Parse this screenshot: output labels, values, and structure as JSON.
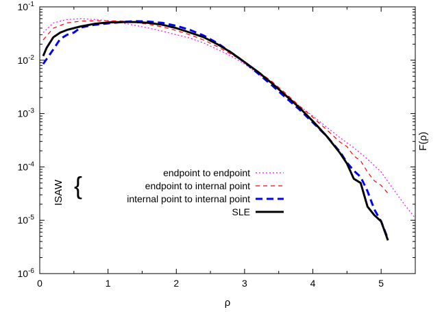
{
  "chart_data": {
    "type": "line",
    "xlabel": "ρ",
    "ylabel": "F(ρ)",
    "xlim": [
      0,
      5.5
    ],
    "ylim_log10": [
      -6,
      -1
    ],
    "yscale": "log",
    "grid": false,
    "legend_position": "center-left",
    "legend_group_label": "ISAW",
    "x_ticks": [
      "0",
      "1",
      "2",
      "3",
      "4",
      "5"
    ],
    "y_ticks": [
      {
        "base": "10",
        "exp": "-1",
        "log": -1
      },
      {
        "base": "10",
        "exp": "-2",
        "log": -2
      },
      {
        "base": "10",
        "exp": "-3",
        "log": -3
      },
      {
        "base": "10",
        "exp": "-4",
        "log": -4
      },
      {
        "base": "10",
        "exp": "-5",
        "log": -5
      },
      {
        "base": "10",
        "exp": "-6",
        "log": -6
      }
    ],
    "series": [
      {
        "name": "endpoint to endpoint",
        "color": "#ff00ff",
        "style": "dotted",
        "width": 1.2,
        "x": [
          0.05,
          0.2,
          0.4,
          0.6,
          0.8,
          1.0,
          1.2,
          1.4,
          1.6,
          1.8,
          2.0,
          2.2,
          2.4,
          2.6,
          2.8,
          3.0,
          3.2,
          3.4,
          3.6,
          3.8,
          4.0,
          4.2,
          4.4,
          4.6,
          4.8,
          5.0,
          5.2,
          5.35,
          5.5
        ],
        "y": [
          0.033,
          0.05,
          0.058,
          0.06,
          0.058,
          0.055,
          0.05,
          0.045,
          0.04,
          0.035,
          0.03,
          0.026,
          0.021,
          0.016,
          0.012,
          0.0085,
          0.0055,
          0.0036,
          0.0023,
          0.0014,
          0.0009,
          0.00056,
          0.00035,
          0.00023,
          0.00014,
          8e-05,
          3.5e-05,
          1.9e-05,
          1.1e-05
        ]
      },
      {
        "name": "endpoint to internal point",
        "color": "#ff0000",
        "style": "dashed",
        "width": 1.2,
        "x": [
          0.05,
          0.2,
          0.4,
          0.6,
          0.8,
          1.0,
          1.2,
          1.4,
          1.6,
          1.8,
          2.0,
          2.2,
          2.4,
          2.6,
          2.8,
          3.0,
          3.2,
          3.4,
          3.6,
          3.8,
          4.0,
          4.2,
          4.4,
          4.5,
          4.6,
          4.7,
          4.8,
          4.9,
          5.0,
          5.1
        ],
        "y": [
          0.024,
          0.04,
          0.05,
          0.054,
          0.055,
          0.055,
          0.054,
          0.051,
          0.047,
          0.042,
          0.036,
          0.03,
          0.024,
          0.018,
          0.013,
          0.0092,
          0.0062,
          0.004,
          0.0024,
          0.0014,
          0.00085,
          0.0005,
          0.00029,
          0.00024,
          0.00016,
          0.00013,
          8e-05,
          5.5e-05,
          4.5e-05,
          3.2e-05
        ]
      },
      {
        "name": "internal point to internal point",
        "color": "#0000ff",
        "style": "dashed",
        "width": 3,
        "x": [
          0.05,
          0.2,
          0.3,
          0.4,
          0.5,
          0.6,
          0.8,
          1.0,
          1.2,
          1.4,
          1.6,
          1.8,
          2.0,
          2.2,
          2.4,
          2.6,
          2.8,
          3.0,
          3.2,
          3.4,
          3.6,
          3.8,
          4.0,
          4.2,
          4.4,
          4.5,
          4.6,
          4.7,
          4.8,
          4.9,
          5.0,
          5.1
        ],
        "y": [
          0.0085,
          0.016,
          0.025,
          0.03,
          0.033,
          0.041,
          0.046,
          0.049,
          0.052,
          0.054,
          0.053,
          0.05,
          0.044,
          0.037,
          0.029,
          0.021,
          0.014,
          0.0092,
          0.0056,
          0.0034,
          0.002,
          0.0012,
          0.00068,
          0.00038,
          0.00019,
          0.00012,
          8.5e-05,
          6.5e-05,
          3.5e-05,
          1.6e-05,
          9.5e-06,
          4.5e-06
        ]
      },
      {
        "name": "SLE",
        "color": "#000000",
        "style": "solid",
        "width": 3,
        "x": [
          0.05,
          0.1,
          0.2,
          0.3,
          0.4,
          0.6,
          0.8,
          1.0,
          1.2,
          1.4,
          1.6,
          1.8,
          2.0,
          2.2,
          2.4,
          2.6,
          2.8,
          3.0,
          3.2,
          3.4,
          3.6,
          3.8,
          4.0,
          4.2,
          4.4,
          4.5,
          4.6,
          4.7,
          4.8,
          4.9,
          5.0,
          5.1
        ],
        "y": [
          0.012,
          0.017,
          0.027,
          0.033,
          0.037,
          0.043,
          0.048,
          0.051,
          0.052,
          0.052,
          0.05,
          0.046,
          0.04,
          0.033,
          0.027,
          0.02,
          0.014,
          0.0092,
          0.006,
          0.0037,
          0.0022,
          0.0013,
          0.00072,
          0.00038,
          0.00018,
          0.000115,
          6e-05,
          5e-05,
          1.8e-05,
          1.25e-05,
          9.5e-06,
          4.2e-06
        ]
      }
    ]
  }
}
